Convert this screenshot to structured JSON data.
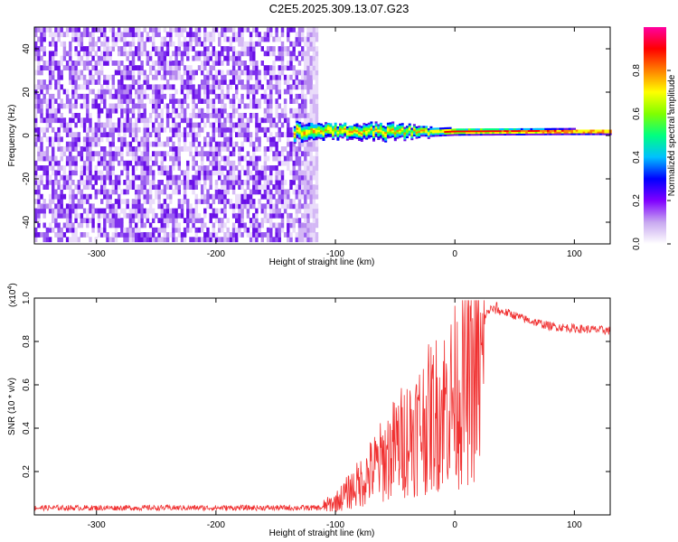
{
  "title": "C2E5.2025.309.13.07.G23",
  "chart_data": [
    {
      "type": "heatmap",
      "name": "spectrogram",
      "xlabel": "Height of straight line (km)",
      "ylabel": "Frequency (Hz)",
      "xlim": [
        -352,
        130
      ],
      "ylim": [
        -50,
        50
      ],
      "xticks": [
        -300,
        -200,
        -100,
        0,
        100
      ],
      "yticks": [
        -40,
        -20,
        0,
        20,
        40
      ],
      "xtick_labels": [
        "-300",
        "-200",
        "-100",
        "0",
        "100"
      ],
      "ytick_labels": [
        "-40",
        "-20",
        "0",
        "20",
        "40"
      ],
      "noise_region_km": [
        -352,
        -115
      ],
      "signal_start_km": -135,
      "signal_center_hz": 1.5,
      "signal_bandwidth_hz": [
        {
          "x": -135,
          "hw": 4
        },
        {
          "x": -100,
          "hw": 3
        },
        {
          "x": -60,
          "hw": 3.5
        },
        {
          "x": -20,
          "hw": 2
        },
        {
          "x": 0,
          "hw": 1.5
        },
        {
          "x": 100,
          "hw": 1.2
        },
        {
          "x": 130,
          "hw": 1.2
        }
      ],
      "colorbar": {
        "label": "Normalized spectral amplitude",
        "ticks": [
          0.0,
          0.2,
          0.4,
          0.6,
          0.8
        ],
        "tick_labels": [
          "0.0",
          "0.2",
          "0.4",
          "0.6",
          "0.8"
        ],
        "range": [
          0,
          1
        ],
        "colors": [
          "#ffffff",
          "#c8a8f0",
          "#8000ff",
          "#0000ff",
          "#00c0ff",
          "#00ff80",
          "#80ff00",
          "#ffff00",
          "#ff8000",
          "#ff0000",
          "#ff00a0"
        ]
      }
    },
    {
      "type": "line",
      "name": "snr",
      "xlabel": "Height of straight line (km)",
      "ylabel": "SNR (10 * v/v)",
      "yscale_label": "(x10",
      "yscale_exp": "4",
      "yscale_close": ")",
      "xlim": [
        -352,
        130
      ],
      "ylim": [
        0,
        1.0
      ],
      "xticks": [
        -300,
        -200,
        -100,
        0,
        100
      ],
      "yticks": [
        0.2,
        0.4,
        0.6,
        0.8,
        1.0
      ],
      "xtick_labels": [
        "-300",
        "-200",
        "-100",
        "0",
        "100"
      ],
      "ytick_labels": [
        "0.2",
        "0.4",
        "0.6",
        "0.8",
        "1.0"
      ],
      "color": "#f03030",
      "envelope": [
        {
          "x": -352,
          "y": 0.03
        },
        {
          "x": -120,
          "y": 0.03
        },
        {
          "x": -100,
          "y": 0.08
        },
        {
          "x": -80,
          "y": 0.2
        },
        {
          "x": -60,
          "y": 0.35
        },
        {
          "x": -40,
          "y": 0.5
        },
        {
          "x": -20,
          "y": 0.62
        },
        {
          "x": -5,
          "y": 0.72
        },
        {
          "x": 10,
          "y": 0.82
        },
        {
          "x": 30,
          "y": 0.95
        },
        {
          "x": 45,
          "y": 0.93
        },
        {
          "x": 60,
          "y": 0.9
        },
        {
          "x": 80,
          "y": 0.87
        },
        {
          "x": 100,
          "y": 0.86
        },
        {
          "x": 130,
          "y": 0.85
        }
      ],
      "peak_value": 0.98,
      "peak_x": 35
    }
  ]
}
